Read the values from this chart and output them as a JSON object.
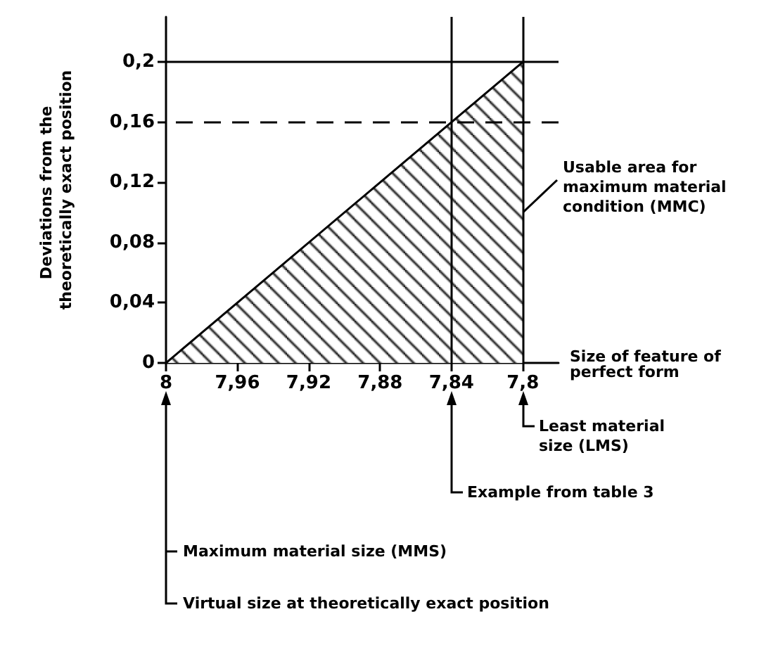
{
  "chart_data": {
    "type": "area",
    "xlabel": "Size of feature of perfect form",
    "ylabel": "Deviations from the theoretically exact position",
    "x": [
      8,
      7.8
    ],
    "values": [
      0,
      0.2
    ],
    "color": "#000000",
    "xlim": [
      8,
      7.78
    ],
    "xticks": [
      8,
      {
        "value": 7.96,
        "label": "7,96"
      },
      {
        "value": 7.92,
        "label": "7,92"
      },
      {
        "value": 7.88,
        "label": "7,88"
      },
      {
        "value": 7.84,
        "label": "7,84"
      },
      {
        "value": 7.8,
        "label": "7,8"
      }
    ],
    "ylim": [
      0,
      0.23
    ],
    "yticks": [
      0,
      {
        "value": 0.04,
        "label": "0,04"
      },
      {
        "value": 0.08,
        "label": "0,08"
      },
      {
        "value": 0.12,
        "label": "0,12"
      },
      {
        "value": 0.16,
        "label": "0,16"
      },
      {
        "value": 0.2,
        "label": "0,2"
      }
    ],
    "ref_lines": [
      {
        "axis": "y",
        "value": 0.2
      },
      {
        "axis": "x",
        "value": 7.8
      },
      {
        "axis": "y",
        "value": 0.16,
        "line_style": "dashed"
      },
      {
        "axis": "x",
        "value": 7.84
      }
    ],
    "annotations": [
      {
        "text": "Usable area for maximum material condition (MMC)",
        "x": 7.8,
        "y": 0.1
      },
      "Least material size (LMS)",
      "Example from table 3",
      "Maximum material size (MMS)",
      "Virtual size at theoretically exact position"
    ],
    "grid": false,
    "marker": "none"
  }
}
